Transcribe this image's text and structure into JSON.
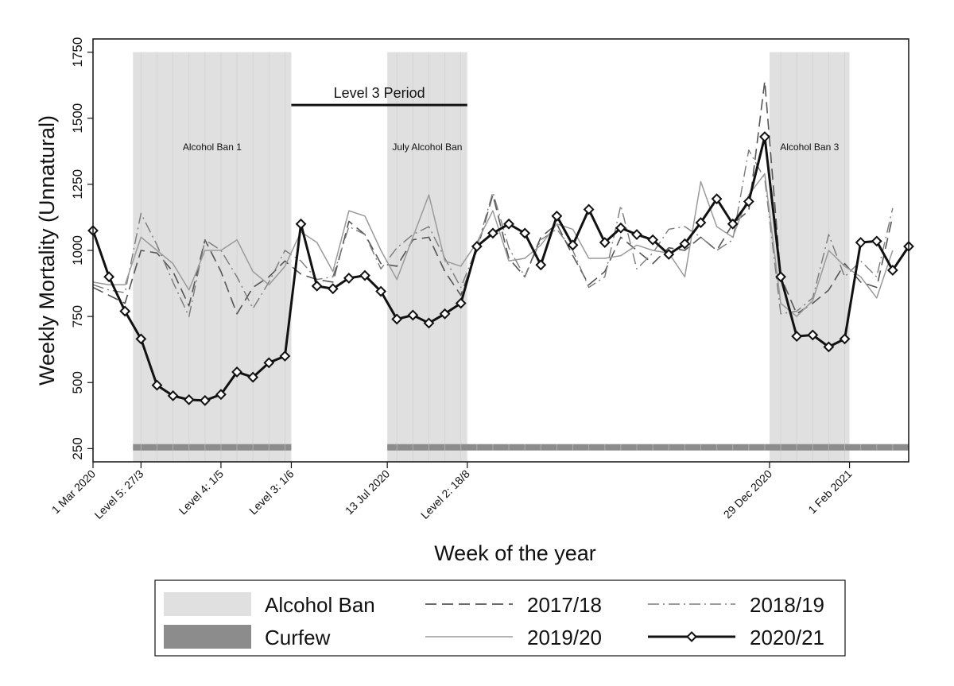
{
  "chart_data": {
    "type": "line",
    "ylabel": "Weekly Mortality (Unnatural)",
    "xlabel": "Week of the year",
    "x_range": [
      0,
      51
    ],
    "ylim": [
      200,
      1800
    ],
    "yticks": [
      250,
      500,
      750,
      1000,
      1250,
      1500,
      1750
    ],
    "ytick_labels": [
      "250",
      "500",
      "750",
      "1000",
      "1250",
      "1500",
      "1750"
    ],
    "xticks": [
      {
        "x": 0,
        "label": "1 Mar 2020"
      },
      {
        "x": 3,
        "label": "Level 5: 27/3"
      },
      {
        "x": 8,
        "label": "Level 4: 1/5"
      },
      {
        "x": 12.4,
        "label": "Level 3: 1/6"
      },
      {
        "x": 18.4,
        "label": "13 Jul 2020"
      },
      {
        "x": 23.4,
        "label": "Level 2: 18/8"
      },
      {
        "x": 42.3,
        "label": "29 Dec 2020"
      },
      {
        "x": 47.3,
        "label": "1 Feb 2021"
      }
    ],
    "alcohol_bans": [
      {
        "start": 2.5,
        "end": 12.4,
        "label": "Alcohol Ban 1"
      },
      {
        "start": 18.4,
        "end": 23.4,
        "label": "July Alcohol Ban"
      },
      {
        "start": 42.3,
        "end": 47.3,
        "label": "Alcohol Ban 3"
      }
    ],
    "curfews": [
      {
        "start": 2.5,
        "end": 12.4
      },
      {
        "start": 18.4,
        "end": 51
      }
    ],
    "curfew_y": 255,
    "level3_period": {
      "start": 12.4,
      "end": 23.4,
      "y": 1550,
      "label": "Level 3 Period"
    },
    "series": [
      {
        "name": "2017/18",
        "style": "dashed",
        "values": [
          860,
          830,
          800,
          1000,
          990,
          920,
          790,
          1040,
          920,
          760,
          860,
          900,
          960,
          910,
          890,
          880,
          1110,
          1060,
          950,
          940,
          1040,
          1050,
          920,
          830,
          1000,
          1210,
          970,
          900,
          1050,
          1100,
          980,
          870,
          920,
          1050,
          1000,
          950,
          1010,
          1000,
          1050,
          1000,
          1100,
          1150,
          1640,
          900,
          760,
          800,
          850,
          950,
          880,
          860,
          1130
        ]
      },
      {
        "name": "2018/19",
        "style": "dashdot",
        "values": [
          870,
          850,
          840,
          1140,
          1020,
          880,
          750,
          1040,
          1000,
          900,
          780,
          880,
          1000,
          960,
          890,
          900,
          1090,
          1060,
          930,
          1010,
          1060,
          1090,
          970,
          860,
          1010,
          1220,
          1010,
          900,
          1040,
          1080,
          1000,
          860,
          900,
          1170,
          930,
          990,
          1080,
          1090,
          1050,
          1000,
          1040,
          1380,
          1270,
          760,
          770,
          820,
          1060,
          900,
          960,
          900,
          1160
        ]
      },
      {
        "name": "2019/20",
        "style": "solid-thin",
        "values": [
          880,
          870,
          870,
          1050,
          1000,
          950,
          850,
          1000,
          1000,
          1040,
          920,
          870,
          940,
          1070,
          1030,
          920,
          1150,
          1130,
          1000,
          890,
          1050,
          1210,
          960,
          940,
          1030,
          1150,
          960,
          970,
          1020,
          1100,
          1080,
          970,
          970,
          980,
          1020,
          1000,
          990,
          900,
          1260,
          1090,
          1050,
          1210,
          1290,
          800,
          750,
          810,
          1000,
          940,
          900,
          820,
          1000
        ]
      },
      {
        "name": "2020/21",
        "style": "solid-diamond",
        "values": [
          1075,
          900,
          770,
          665,
          490,
          450,
          435,
          432,
          455,
          540,
          520,
          575,
          600,
          1100,
          865,
          855,
          895,
          905,
          845,
          740,
          755,
          725,
          760,
          800,
          1015,
          1065,
          1100,
          1065,
          945,
          1130,
          1020,
          1155,
          1030,
          1085,
          1060,
          1040,
          985,
          1025,
          1105,
          1195,
          1100,
          1185,
          1430,
          900,
          675,
          680,
          635,
          665,
          1030,
          1035,
          925,
          1015
        ]
      }
    ],
    "legend": {
      "placement": "bottom",
      "entries": [
        "Alcohol Ban",
        "2017/18",
        "2018/19",
        "Curfew",
        "2019/20",
        "2020/21"
      ]
    },
    "colors": {
      "alcohol_ban": "#e0e0e0",
      "alcohol_ban_lines": "#d4d4d4",
      "curfew": "#8c8c8c",
      "series_2017": "#555555",
      "series_2018": "#7a7a7a",
      "series_2019": "#9a9a9a",
      "series_2020": "#111111"
    }
  }
}
